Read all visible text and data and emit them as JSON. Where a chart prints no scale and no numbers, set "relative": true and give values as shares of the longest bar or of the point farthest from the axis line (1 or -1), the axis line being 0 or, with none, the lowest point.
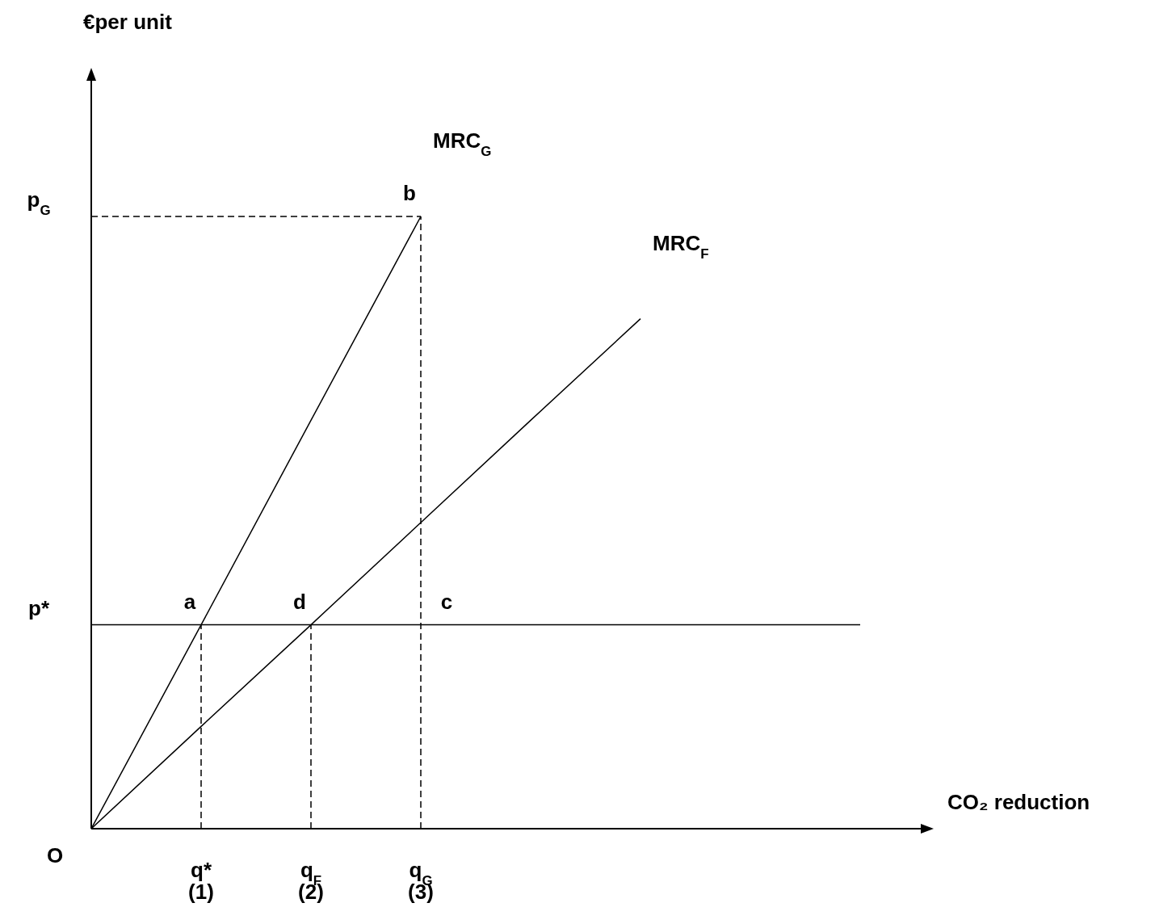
{
  "chart_data": {
    "type": "line",
    "relative": true,
    "xlabel": "CO₂ reduction",
    "categories": [
      null,
      "q*\n(1)",
      "q$_{F}$\n(2)",
      "q$_{G}$\n(3)",
      null,
      null,
      null,
      null
    ],
    "series": [
      {
        "name": "MRC$_{G}$",
        "color": "#000000",
        "values": [
          0,
          0.333,
          0.667,
          1.0,
          null,
          null,
          null,
          null
        ],
        "line_style": "solid"
      },
      {
        "name": "MRC$_{F}$",
        "color": "#000000",
        "values": [
          0,
          0.167,
          0.333,
          0.5,
          0.667,
          0.833,
          null,
          null
        ],
        "line_style": "solid"
      },
      {
        "color": "#000000",
        "values": [
          0.333,
          0.333,
          0.333,
          0.333,
          0.333,
          0.333,
          0.333,
          0.333
        ],
        "line_style": "solid"
      },
      {
        "color": "#000000",
        "values": [
          1.0,
          1.0,
          1.0,
          1.0,
          null,
          null,
          null,
          null
        ],
        "line_style": "dashed"
      },
      {
        "color": "#000000",
        "x": [
          "q*\n(1)",
          "q*\n(1)"
        ],
        "values": [
          0,
          0.333
        ],
        "line_style": "dashed"
      },
      {
        "color": "#000000",
        "x": [
          "q$_{F}$\n(2)",
          "q$_{F}$\n(2)"
        ],
        "values": [
          0,
          0.333
        ],
        "line_style": "dashed"
      },
      {
        "color": "#000000",
        "x": [
          "q$_{G}$\n(3)",
          "q$_{G}$\n(3)"
        ],
        "values": [
          0,
          1.0
        ],
        "line_style": "dashed"
      }
    ],
    "annotations": [
      {
        "text": "a",
        "x": "q*\n(1)",
        "y": 0.333
      },
      {
        "text": "d",
        "x": "q$_{F}$\n(2)",
        "y": 0.333
      },
      {
        "text": "b",
        "x": "q$_{G}$\n(3)",
        "y": 1.0
      },
      {
        "text": "c",
        "x": "q$_{G}$\n(3)",
        "y": 0.333
      },
      "p*",
      "p$_{G}$",
      "O",
      "€per unit"
    ]
  }
}
